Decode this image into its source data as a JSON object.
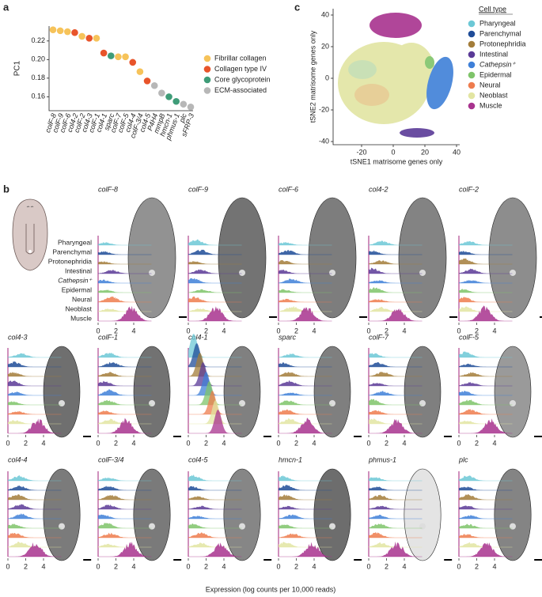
{
  "panel_labels": [
    "a",
    "b",
    "c"
  ],
  "chart_data": [
    {
      "type": "dot",
      "ylabel": "PC1",
      "categories": [
        "colF-8",
        "colF-9",
        "colF-6",
        "col4-2",
        "colF-2",
        "col4-3",
        "colF-1",
        "col4-1",
        "sparc",
        "colF-7",
        "colF-5",
        "col4-4",
        "colF-3/4",
        "col4-5",
        "P4H4",
        "mmpB",
        "hmcn-1",
        "phmus-1",
        "plc",
        "sFRP-3"
      ],
      "values": [
        0.232,
        0.231,
        0.23,
        0.229,
        0.225,
        0.223,
        0.223,
        0.207,
        0.204,
        0.203,
        0.203,
        0.197,
        0.187,
        0.177,
        0.172,
        0.164,
        0.16,
        0.155,
        0.152,
        0.149
      ],
      "colors": [
        "#f6c35a",
        "#f6c35a",
        "#f6c35a",
        "#e8542a",
        "#f6c35a",
        "#e8542a",
        "#f6c35a",
        "#e8542a",
        "#3f9c78",
        "#f6c35a",
        "#f6c35a",
        "#e8542a",
        "#f6c35a",
        "#e8542a",
        "#b7b7b7",
        "#b7b7b7",
        "#3f9c78",
        "#3f9c78",
        "#b7b7b7",
        "#b7b7b7"
      ],
      "ylim": [
        0.145,
        0.236
      ],
      "yticks": [
        0.16,
        0.18,
        {
          "value": 0.2,
          "label": "0.20"
        },
        0.22
      ],
      "legend": [
        {
          "name": "Fibrillar collagen",
          "color": "#f6c35a"
        },
        {
          "name": "Collagen type IV",
          "color": "#e8542a"
        },
        {
          "name": "Core glycoprotein",
          "color": "#3f9c78"
        },
        {
          "name": "ECM-associated",
          "color": "#b7b7b7"
        }
      ]
    },
    {
      "type": "scatter",
      "xlabel": "tSNE1 matrisome genes only",
      "ylabel": "tSNE2 matrisome genes only",
      "xlim": [
        -38,
        42
      ],
      "ylim": [
        -42,
        44
      ],
      "xticks": [
        -20,
        0,
        20,
        40
      ],
      "yticks": [
        -40,
        -20,
        0,
        20,
        40
      ],
      "legend_title": "Cell type",
      "legend": [
        {
          "name": "Pharyngeal",
          "color": "#6cc8d6"
        },
        {
          "name": "Parenchymal",
          "color": "#1f4c98"
        },
        {
          "name": "Protonephridia",
          "color": "#a37d3a"
        },
        {
          "name": "Intestinal",
          "color": "#5a3a97"
        },
        {
          "name": "Cathepsin⁺",
          "color": "#3f80d8"
        },
        {
          "name": "Epidermal",
          "color": "#7fc46a"
        },
        {
          "name": "Neural",
          "color": "#ee7c4e"
        },
        {
          "name": "Neoblast",
          "color": "#e2e5a2"
        },
        {
          "name": "Muscle",
          "color": "#a8338e"
        }
      ]
    }
  ],
  "panel_b": {
    "genes": [
      "colF-8",
      "colF-9",
      "colF-6",
      "col4-2",
      "colF-2",
      "col4-3",
      "colF-1",
      "col4-1",
      "sparc",
      "colF-7",
      "colF-5",
      "col4-4",
      "colF-3/4",
      "col4-5",
      "hmcn-1",
      "phmus-1",
      "plc"
    ],
    "xlim": [
      0,
      6
    ],
    "xticks": [
      0,
      2,
      4
    ],
    "xlabel": "Expression (log counts per 10,000 reads)"
  }
}
